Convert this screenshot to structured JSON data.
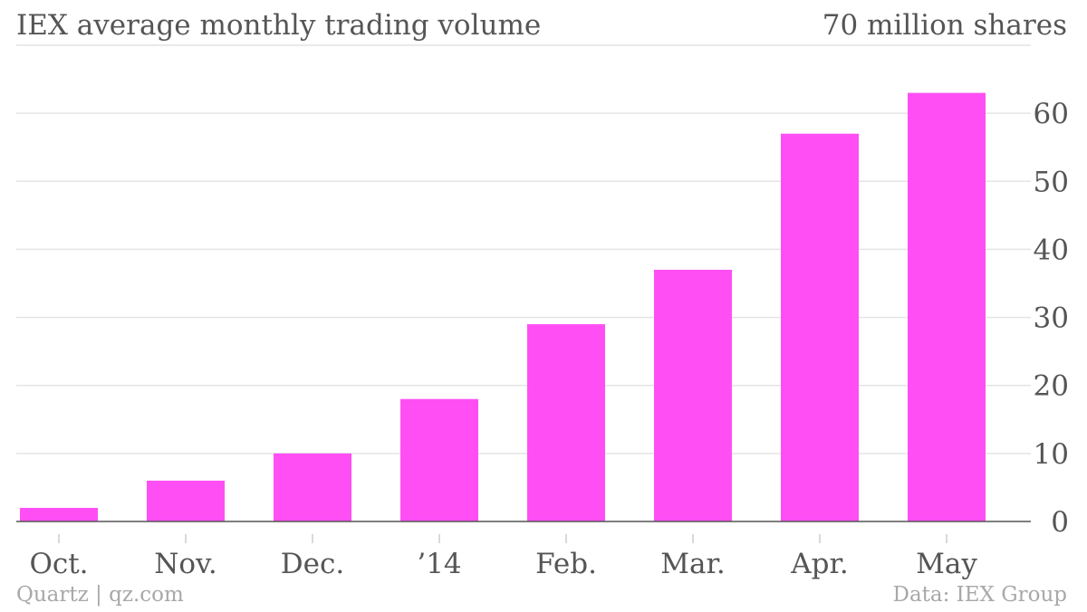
{
  "chart_data": {
    "type": "bar",
    "title": "IEX average monthly trading volume",
    "units_label": "70 million shares",
    "categories": [
      "Oct.",
      "Nov.",
      "Dec.",
      "’14",
      "Feb.",
      "Mar.",
      "Apr.",
      "May"
    ],
    "values": [
      2,
      6,
      10,
      18,
      29,
      37,
      57,
      63
    ],
    "ylim": [
      0,
      70
    ],
    "yticks": [
      0,
      10,
      20,
      30,
      40,
      50,
      60
    ],
    "grid": true,
    "bar_color": "#ff4ff4",
    "y_axis_position": "right"
  },
  "footer": {
    "credit": "Quartz | qz.com",
    "source": "Data: IEX Group"
  }
}
